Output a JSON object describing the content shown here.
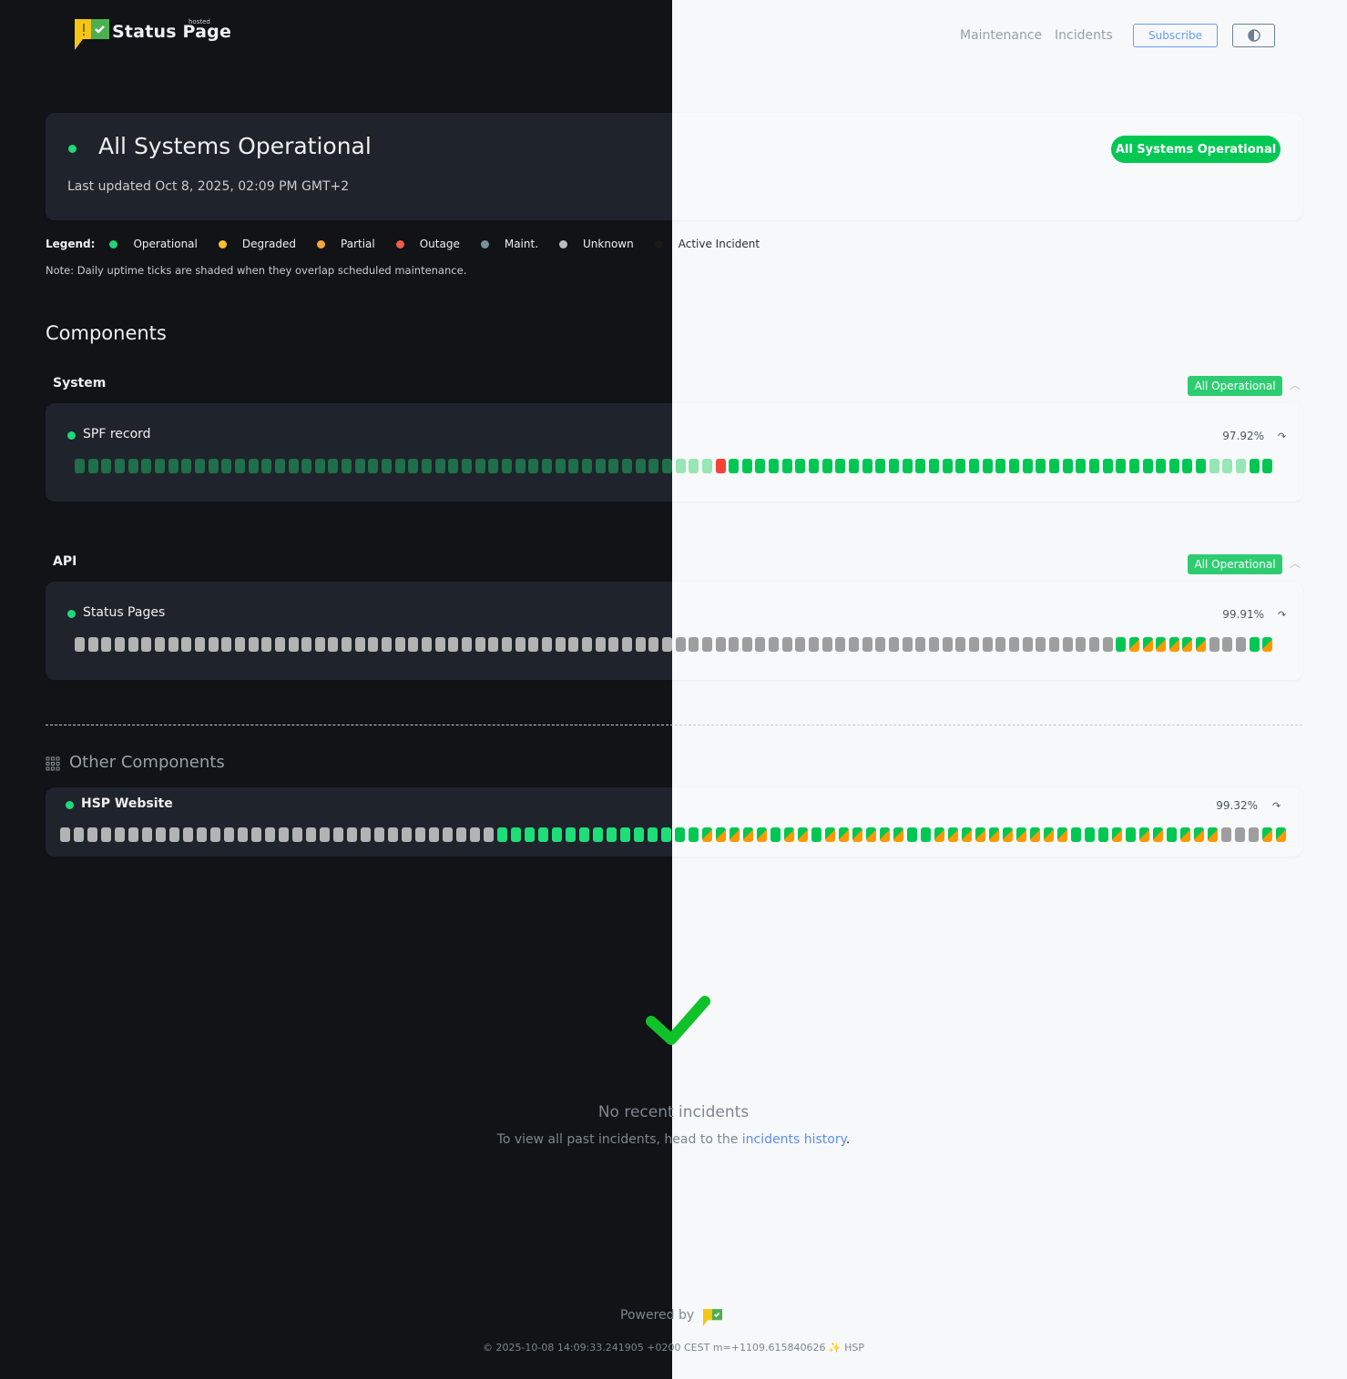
{
  "header": {
    "brand": "Status Page",
    "brand_tag": "hosted",
    "nav": [
      "Maintenance",
      "Incidents"
    ],
    "subscribe_label": "Subscribe",
    "theme_toggle_icon": "half-circle-icon"
  },
  "hero": {
    "title": "All Systems Operational",
    "last_updated": "Last updated Oct 8, 2025, 02:09 PM GMT+2",
    "badge": "All Systems Operational"
  },
  "legend": {
    "label": "Legend:",
    "items": [
      {
        "label": "Operational",
        "color": "#22d37a"
      },
      {
        "label": "Degraded",
        "color": "#fbc02d"
      },
      {
        "label": "Partial",
        "color": "#f7a53a"
      },
      {
        "label": "Outage",
        "color": "#f15b4e"
      },
      {
        "label": "Maint.",
        "color": "#78909c"
      },
      {
        "label": "Unknown",
        "color": "#bdbdbd"
      },
      {
        "label": "Active Incident",
        "color": "#1c1a17"
      }
    ],
    "note": "Note: Daily uptime ticks are shaded when they overlap scheduled maintenance."
  },
  "components_title": "Components",
  "groups": [
    {
      "name": "System",
      "badge": "All Operational",
      "component": {
        "name": "SPF record",
        "uptime": "97.92%",
        "tick_runs": [
          {
            "status": "operational-shaded",
            "count": 48
          },
          {
            "status": "outage",
            "count": 1
          },
          {
            "status": "operational",
            "count": 36
          },
          {
            "status": "operational-shaded",
            "count": 3
          },
          {
            "status": "operational",
            "count": 2
          }
        ]
      }
    },
    {
      "name": "API",
      "badge": "All Operational",
      "component": {
        "name": "Status Pages",
        "uptime": "99.91%",
        "tick_runs": [
          {
            "status": "unknown",
            "count": 78
          },
          {
            "status": "operational",
            "count": 1
          },
          {
            "status": "partial-split",
            "count": 6
          },
          {
            "status": "unknown",
            "count": 3
          },
          {
            "status": "operational",
            "count": 1
          },
          {
            "status": "partial-split",
            "count": 1
          }
        ]
      }
    }
  ],
  "other": {
    "title": "Other Components",
    "component": {
      "name": "HSP Website",
      "uptime": "99.32%",
      "tick_runs": [
        {
          "status": "unknown",
          "count": 32
        },
        {
          "status": "operational",
          "count": 15
        },
        {
          "status": "partial-split",
          "count": 5
        },
        {
          "status": "operational",
          "count": 1
        },
        {
          "status": "partial-split",
          "count": 2
        },
        {
          "status": "operational",
          "count": 1
        },
        {
          "status": "partial-split",
          "count": 6
        },
        {
          "status": "operational",
          "count": 2
        },
        {
          "status": "partial-split",
          "count": 10
        },
        {
          "status": "operational",
          "count": 3
        },
        {
          "status": "partial-split",
          "count": 1
        },
        {
          "status": "operational",
          "count": 1
        },
        {
          "status": "partial-split",
          "count": 2
        },
        {
          "status": "operational",
          "count": 1
        },
        {
          "status": "partial-split",
          "count": 3
        },
        {
          "status": "unknown",
          "count": 3
        },
        {
          "status": "partial-split",
          "count": 2
        }
      ]
    }
  },
  "incidents": {
    "title": "No recent incidents",
    "text": "To view all past incidents, head to the ",
    "link": "incidents history",
    "after": "."
  },
  "footer": {
    "powered": "Powered by",
    "build": "© 2025-10-08 14:09:33.241905 +0200 CEST m=+1109.615840626 ✨ HSP"
  }
}
